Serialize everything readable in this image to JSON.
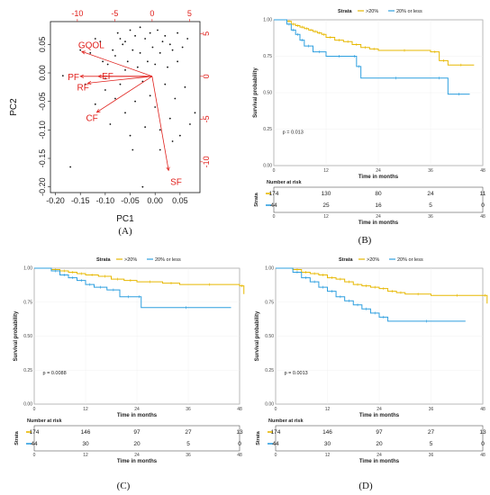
{
  "chart_data": [
    {
      "type": "scatter",
      "panel": "(A)",
      "xlabel": "PC1",
      "ylabel": "PC2",
      "xlim": [
        -0.21,
        0.09
      ],
      "ylim": [
        -0.21,
        0.09
      ],
      "x_ticks": [
        "-0.20",
        "-0.15",
        "-0.10",
        "-0.05",
        "0.00",
        "0.05"
      ],
      "y_ticks": [
        "0.05",
        "0.00",
        "-0.05",
        "-0.10",
        "-0.15",
        "-0.20"
      ],
      "x_tick_values": [
        -0.2,
        -0.15,
        -0.1,
        -0.05,
        0.0,
        0.05
      ],
      "y_tick_values": [
        0.05,
        0.0,
        -0.05,
        -0.1,
        -0.15,
        -0.2
      ],
      "top_ticks": [
        "-10",
        "-5",
        "0",
        "5"
      ],
      "top_tick_values": [
        -10,
        -5,
        0,
        5
      ],
      "right_ticks": [
        "5",
        "0",
        "-5",
        "-10"
      ],
      "right_tick_values": [
        5,
        0,
        -5,
        -10
      ],
      "loadings_range": [
        -13.6,
        6.4
      ],
      "variables": [
        {
          "name": "GQOL",
          "x": -9.4,
          "y": 2.9
        },
        {
          "name": "PF",
          "x": -9.6,
          "y": 0.0
        },
        {
          "name": "EF",
          "x": -7.2,
          "y": 0.0
        },
        {
          "name": "RF",
          "x": -8.6,
          "y": -0.8
        },
        {
          "name": "CF",
          "x": -7.4,
          "y": -4.2
        },
        {
          "name": "SF",
          "x": 2.2,
          "y": -11.0
        }
      ],
      "points": [
        [
          -0.17,
          -0.165
        ],
        [
          -0.185,
          -0.005
        ],
        [
          -0.14,
          -0.02
        ],
        [
          -0.13,
          0.035
        ],
        [
          -0.12,
          0.06
        ],
        [
          -0.11,
          0.055
        ],
        [
          -0.105,
          0.02
        ],
        [
          -0.1,
          -0.03
        ],
        [
          -0.095,
          0.015
        ],
        [
          -0.09,
          -0.09
        ],
        [
          -0.085,
          0.04
        ],
        [
          -0.08,
          0.03
        ],
        [
          -0.075,
          0.07
        ],
        [
          -0.07,
          -0.02
        ],
        [
          -0.065,
          0.05
        ],
        [
          -0.06,
          0.055
        ],
        [
          -0.06,
          -0.07
        ],
        [
          -0.055,
          0.02
        ],
        [
          -0.05,
          0.075
        ],
        [
          -0.05,
          -0.11
        ],
        [
          -0.045,
          0.04
        ],
        [
          -0.04,
          0.065
        ],
        [
          -0.04,
          -0.05
        ],
        [
          -0.035,
          0.01
        ],
        [
          -0.03,
          0.08
        ],
        [
          -0.03,
          0.035
        ],
        [
          -0.025,
          -0.015
        ],
        [
          -0.02,
          0.06
        ],
        [
          -0.02,
          -0.095
        ],
        [
          -0.015,
          0.02
        ],
        [
          -0.01,
          0.07
        ],
        [
          -0.01,
          -0.04
        ],
        [
          -0.005,
          0.045
        ],
        [
          0.0,
          0.015
        ],
        [
          0.0,
          -0.06
        ],
        [
          0.005,
          0.075
        ],
        [
          0.01,
          0.035
        ],
        [
          0.01,
          -0.1
        ],
        [
          0.015,
          0.055
        ],
        [
          0.02,
          -0.02
        ],
        [
          0.02,
          0.065
        ],
        [
          0.025,
          0.01
        ],
        [
          0.03,
          0.05
        ],
        [
          0.03,
          -0.08
        ],
        [
          0.035,
          0.04
        ],
        [
          0.04,
          -0.045
        ],
        [
          0.045,
          0.07
        ],
        [
          0.045,
          0.02
        ],
        [
          0.05,
          -0.11
        ],
        [
          0.055,
          0.045
        ],
        [
          0.06,
          -0.025
        ],
        [
          0.065,
          0.06
        ],
        [
          0.07,
          -0.09
        ],
        [
          -0.06,
          0.005
        ],
        [
          -0.08,
          -0.045
        ],
        [
          -0.12,
          -0.055
        ],
        [
          -0.025,
          -0.2
        ],
        [
          -0.045,
          -0.135
        ],
        [
          0.01,
          -0.135
        ],
        [
          0.035,
          -0.12
        ],
        [
          -0.1,
          -0.01
        ],
        [
          0.08,
          -0.07
        ],
        [
          -0.15,
          0.04
        ],
        [
          -0.07,
          0.06
        ]
      ]
    },
    {
      "type": "line",
      "panel": "(B)",
      "title": "Strata",
      "ylabel": "Survival probability",
      "xlabel": "Time in months",
      "xlim": [
        0,
        48
      ],
      "ylim": [
        0,
        1
      ],
      "x_ticks": [
        "0",
        "12",
        "24",
        "36",
        "48"
      ],
      "y_ticks": [
        "0.00",
        "0.25",
        "0.50",
        "0.75",
        "1.00"
      ],
      "pvalue": "p = 0.013",
      "legend_position": "top",
      "series": [
        {
          "name": ">20%",
          "color": "#e7b800",
          "x": [
            0,
            3,
            4,
            5,
            6,
            7,
            8,
            9,
            10,
            11,
            12,
            14,
            16,
            18,
            20,
            22,
            24,
            36,
            38,
            40,
            46
          ],
          "y": [
            1.0,
            0.99,
            0.97,
            0.96,
            0.95,
            0.94,
            0.93,
            0.92,
            0.91,
            0.9,
            0.88,
            0.86,
            0.85,
            0.83,
            0.81,
            0.8,
            0.79,
            0.78,
            0.72,
            0.69,
            0.69
          ]
        },
        {
          "name": "20% or less",
          "color": "#2e9fdf",
          "x": [
            0,
            3,
            4,
            5,
            6,
            7,
            9,
            12,
            18,
            19,
            20,
            36,
            40,
            45
          ],
          "y": [
            1.0,
            0.97,
            0.93,
            0.9,
            0.86,
            0.82,
            0.78,
            0.75,
            0.75,
            0.68,
            0.6,
            0.6,
            0.49,
            0.49
          ]
        }
      ],
      "risk_table": {
        "header": "Number at risk",
        "strata_label": "Strata",
        "times": [
          0,
          12,
          24,
          36,
          48
        ],
        "rows": [
          {
            "color": "#e7b800",
            "values": [
              "174",
              "130",
              "80",
              "24",
              "11"
            ]
          },
          {
            "color": "#2e9fdf",
            "values": [
              "44",
              "25",
              "16",
              "5",
              "0"
            ]
          }
        ],
        "xlabel": "Time in months"
      }
    },
    {
      "type": "line",
      "panel": "(C)",
      "title": "Strata",
      "ylabel": "Survival probability",
      "xlabel": "Time in months",
      "xlim": [
        0,
        48
      ],
      "ylim": [
        0,
        1
      ],
      "x_ticks": [
        "0",
        "12",
        "24",
        "36",
        "48"
      ],
      "y_ticks": [
        "0.00",
        "0.25",
        "0.50",
        "0.75",
        "1.00"
      ],
      "pvalue": "p = 0.0088",
      "legend_position": "top",
      "series": [
        {
          "name": ">20%",
          "color": "#e7b800",
          "x": [
            0,
            4,
            6,
            8,
            10,
            12,
            15,
            18,
            21,
            24,
            30,
            34,
            48,
            49
          ],
          "y": [
            1.0,
            0.99,
            0.98,
            0.97,
            0.96,
            0.95,
            0.94,
            0.92,
            0.91,
            0.9,
            0.89,
            0.88,
            0.87,
            0.81
          ]
        },
        {
          "name": "20% or less",
          "color": "#2e9fdf",
          "x": [
            0,
            4,
            6,
            8,
            10,
            12,
            14,
            17,
            20,
            24,
            25,
            46
          ],
          "y": [
            1.0,
            0.98,
            0.95,
            0.93,
            0.91,
            0.88,
            0.86,
            0.84,
            0.79,
            0.79,
            0.71,
            0.71
          ]
        }
      ],
      "risk_table": {
        "header": "Number at risk",
        "strata_label": "Strata",
        "times": [
          0,
          12,
          24,
          36,
          48
        ],
        "rows": [
          {
            "color": "#e7b800",
            "values": [
              "174",
              "146",
              "97",
              "27",
              "13"
            ]
          },
          {
            "color": "#2e9fdf",
            "values": [
              "44",
              "30",
              "20",
              "5",
              "0"
            ]
          }
        ],
        "xlabel": "Time in months"
      }
    },
    {
      "type": "line",
      "panel": "(D)",
      "title": "Strata",
      "ylabel": "Survival probability",
      "xlabel": "Time in months",
      "xlim": [
        0,
        48
      ],
      "ylim": [
        0,
        1
      ],
      "x_ticks": [
        "0",
        "12",
        "24",
        "36",
        "48"
      ],
      "y_ticks": [
        "0.00",
        "0.25",
        "0.50",
        "0.75",
        "1.00"
      ],
      "pvalue": "p = 0.0013",
      "legend_position": "top",
      "series": [
        {
          "name": ">20%",
          "color": "#e7b800",
          "x": [
            0,
            4,
            6,
            8,
            10,
            12,
            14,
            16,
            18,
            20,
            22,
            24,
            26,
            28,
            30,
            36,
            48,
            49
          ],
          "y": [
            1.0,
            0.99,
            0.97,
            0.96,
            0.95,
            0.93,
            0.92,
            0.9,
            0.88,
            0.87,
            0.86,
            0.85,
            0.83,
            0.82,
            0.81,
            0.8,
            0.8,
            0.74
          ]
        },
        {
          "name": "20% or less",
          "color": "#2e9fdf",
          "x": [
            0,
            4,
            6,
            8,
            10,
            12,
            14,
            16,
            18,
            20,
            22,
            24,
            26,
            44
          ],
          "y": [
            1.0,
            0.97,
            0.93,
            0.9,
            0.86,
            0.83,
            0.79,
            0.76,
            0.73,
            0.7,
            0.67,
            0.64,
            0.61,
            0.61
          ]
        }
      ],
      "risk_table": {
        "header": "Number at risk",
        "strata_label": "Strata",
        "times": [
          0,
          12,
          24,
          36,
          48
        ],
        "rows": [
          {
            "color": "#e7b800",
            "values": [
              "174",
              "146",
              "97",
              "27",
              "13"
            ]
          },
          {
            "color": "#2e9fdf",
            "values": [
              "44",
              "30",
              "20",
              "5",
              "0"
            ]
          }
        ],
        "xlabel": "Time in months"
      }
    }
  ]
}
